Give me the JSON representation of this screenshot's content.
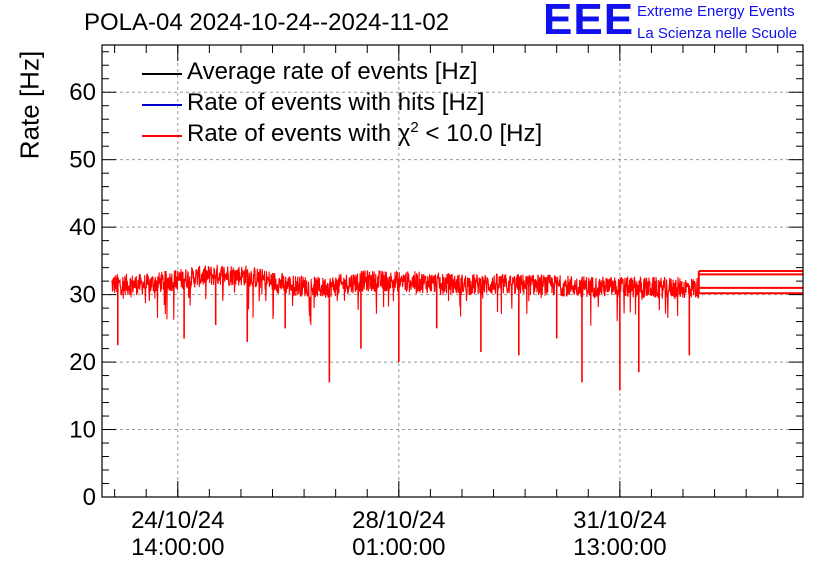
{
  "chart_data": {
    "type": "line",
    "title": "POLA-04 2024-10-24--2024-11-02",
    "ylabel": "Rate [Hz]",
    "xlabel": "",
    "ylim": [
      0,
      67
    ],
    "yticks": [
      0,
      10,
      20,
      30,
      40,
      50,
      60
    ],
    "grid": true,
    "x_ticks": [
      {
        "date": "24/10/24",
        "time": "14:00:00",
        "pos_days": 0.5
      },
      {
        "date": "28/10/24",
        "time": "01:00:00",
        "pos_days": 4.0
      },
      {
        "date": "31/10/24",
        "time": "13:00:00",
        "pos_days": 7.5
      }
    ],
    "x_range_days": [
      -0.7,
      10.4
    ],
    "legend_position": "top-left",
    "series": [
      {
        "name": "Average rate of events [Hz]",
        "color": "#000000"
      },
      {
        "name": "Rate of events with hits [Hz]",
        "color": "#0000cc"
      },
      {
        "name": "Rate of events with χ² < 10.0 [Hz]",
        "name_main": "Rate of events with χ",
        "name_sup": "2",
        "name_rest": " < 10.0 [Hz]",
        "color": "#ff0000",
        "data_start_days": -0.55,
        "data_end_days": 8.75,
        "baseline_hz": 32.0,
        "range_hz": [
          15.8,
          35.6
        ],
        "profile": [
          {
            "t": -0.55,
            "v": 31.5
          },
          {
            "t": 0.0,
            "v": 31.5
          },
          {
            "t": 0.7,
            "v": 32.5
          },
          {
            "t": 1.2,
            "v": 33.0
          },
          {
            "t": 1.6,
            "v": 32.8
          },
          {
            "t": 2.2,
            "v": 31.5
          },
          {
            "t": 2.8,
            "v": 31.0
          },
          {
            "t": 3.4,
            "v": 32.0
          },
          {
            "t": 4.0,
            "v": 32.0
          },
          {
            "t": 5.0,
            "v": 31.5
          },
          {
            "t": 6.0,
            "v": 31.5
          },
          {
            "t": 7.0,
            "v": 31.2
          },
          {
            "t": 8.0,
            "v": 31.0
          },
          {
            "t": 8.75,
            "v": 31.0
          }
        ],
        "dips": [
          {
            "t": -0.45,
            "v": 22.5
          },
          {
            "t": 0.6,
            "v": 23.5
          },
          {
            "t": 1.1,
            "v": 25.5
          },
          {
            "t": 1.6,
            "v": 23.0
          },
          {
            "t": 2.2,
            "v": 25.0
          },
          {
            "t": 2.9,
            "v": 17.0
          },
          {
            "t": 3.4,
            "v": 22.0
          },
          {
            "t": 4.0,
            "v": 20.0
          },
          {
            "t": 4.6,
            "v": 25.0
          },
          {
            "t": 5.3,
            "v": 21.5
          },
          {
            "t": 5.9,
            "v": 21.0
          },
          {
            "t": 6.5,
            "v": 23.5
          },
          {
            "t": 6.9,
            "v": 17.0
          },
          {
            "t": 7.5,
            "v": 15.8
          },
          {
            "t": 7.8,
            "v": 18.5
          },
          {
            "t": 8.6,
            "v": 21.0
          }
        ],
        "tail_levels_hz": [
          33.5,
          33.0,
          31.0,
          30.2
        ]
      }
    ]
  },
  "logo": {
    "mark": "EEE",
    "line1": "Extreme Energy Events",
    "line2": "La Scienza nelle Scuole"
  }
}
